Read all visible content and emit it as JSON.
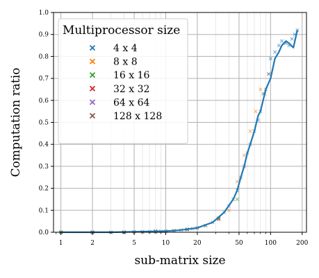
{
  "chart_data": {
    "type": "scatter",
    "xlabel": "sub-matrix size",
    "ylabel": "Computation ratio",
    "xscale": "log",
    "xlim": [
      0.85,
      220
    ],
    "ylim": [
      0,
      1
    ],
    "grid": true,
    "legend_title": "Multiprocessor size",
    "legend_position": "top-left",
    "x_tick_labels": [
      "1",
      "2",
      "5",
      "10",
      "20",
      "50",
      "100",
      "200"
    ],
    "x_ticks": [
      1,
      2,
      5,
      10,
      20,
      50,
      100,
      200
    ],
    "y_tick_labels": [
      "0.0",
      "0.1",
      "0.2",
      "0.3",
      "0.4",
      "0.5",
      "0.6",
      "0.7",
      "0.8",
      "0.9",
      "1.0"
    ],
    "y_ticks": [
      0,
      0.1,
      0.2,
      0.3,
      0.4,
      0.5,
      0.6,
      0.7,
      0.8,
      0.9,
      1.0
    ],
    "series": [
      {
        "name": "4 x 4",
        "color": "#1f77b4",
        "marker": "x",
        "x": [
          1,
          2,
          3,
          4,
          5,
          6,
          7,
          8,
          9,
          10,
          12,
          14,
          16,
          18,
          20,
          24,
          28,
          32,
          36,
          40,
          44,
          48,
          52,
          56,
          60,
          64,
          70,
          76,
          80,
          85,
          90,
          96,
          100,
          110,
          120,
          128,
          140,
          150,
          160,
          170,
          180
        ],
        "y": [
          0.0,
          0.0,
          0.0,
          0.0,
          0.002,
          0.002,
          0.003,
          0.004,
          0.004,
          0.005,
          0.007,
          0.01,
          0.013,
          0.016,
          0.02,
          0.03,
          0.045,
          0.065,
          0.09,
          0.12,
          0.15,
          0.19,
          0.25,
          0.3,
          0.36,
          0.4,
          0.46,
          0.51,
          0.55,
          0.63,
          0.65,
          0.72,
          0.79,
          0.82,
          0.85,
          0.87,
          0.86,
          0.85,
          0.88,
          0.9,
          0.92
        ]
      },
      {
        "name": "8 x 8",
        "color": "#ff7f0e",
        "marker": "x",
        "x": [
          1,
          2,
          3,
          4,
          5,
          6,
          8,
          10,
          12,
          16,
          20,
          24,
          32,
          40,
          48,
          56,
          64,
          72,
          80,
          88,
          96
        ],
        "y": [
          0.0,
          0.0,
          0.0,
          0.0,
          0.001,
          0.002,
          0.004,
          0.005,
          0.007,
          0.012,
          0.019,
          0.03,
          0.06,
          0.1,
          0.23,
          0.35,
          0.46,
          0.55,
          0.65,
          0.63,
          0.72
        ]
      },
      {
        "name": "16 x 16",
        "color": "#2ca02c",
        "marker": "x",
        "x": [
          1,
          2,
          4,
          8,
          16,
          32,
          48
        ],
        "y": [
          0.0,
          0.0,
          0.0,
          0.004,
          0.013,
          0.06,
          0.15
        ]
      },
      {
        "name": "32 x 32",
        "color": "#d62728",
        "marker": "x",
        "x": [
          1,
          2,
          4,
          8,
          16,
          32
        ],
        "y": [
          0.0,
          0.0,
          0.0,
          0.004,
          0.013,
          0.06
        ]
      },
      {
        "name": "64 x 64",
        "color": "#9467bd",
        "marker": "x",
        "x": [
          1,
          2,
          4,
          8,
          16,
          32
        ],
        "y": [
          0.0,
          0.0,
          0.0,
          0.004,
          0.013,
          0.06
        ]
      },
      {
        "name": "128 x 128",
        "color": "#8c564b",
        "marker": "x",
        "x": [
          1,
          2,
          4,
          8,
          16,
          32
        ],
        "y": [
          0.0,
          0.0,
          0.0,
          0.004,
          0.013,
          0.06
        ]
      }
    ],
    "trend_line": {
      "color": "#1f77b4",
      "x": [
        1,
        2,
        3,
        5,
        8,
        10,
        14,
        20,
        28,
        36,
        44,
        48,
        52,
        56,
        60,
        64,
        70,
        76,
        80,
        90,
        100,
        110,
        120,
        128,
        140,
        150,
        165,
        180
      ],
      "y": [
        0.0,
        0.0,
        0.0,
        0.002,
        0.004,
        0.005,
        0.01,
        0.02,
        0.045,
        0.09,
        0.15,
        0.19,
        0.25,
        0.3,
        0.36,
        0.4,
        0.46,
        0.53,
        0.55,
        0.65,
        0.7,
        0.79,
        0.82,
        0.85,
        0.87,
        0.86,
        0.84,
        0.92
      ]
    }
  }
}
